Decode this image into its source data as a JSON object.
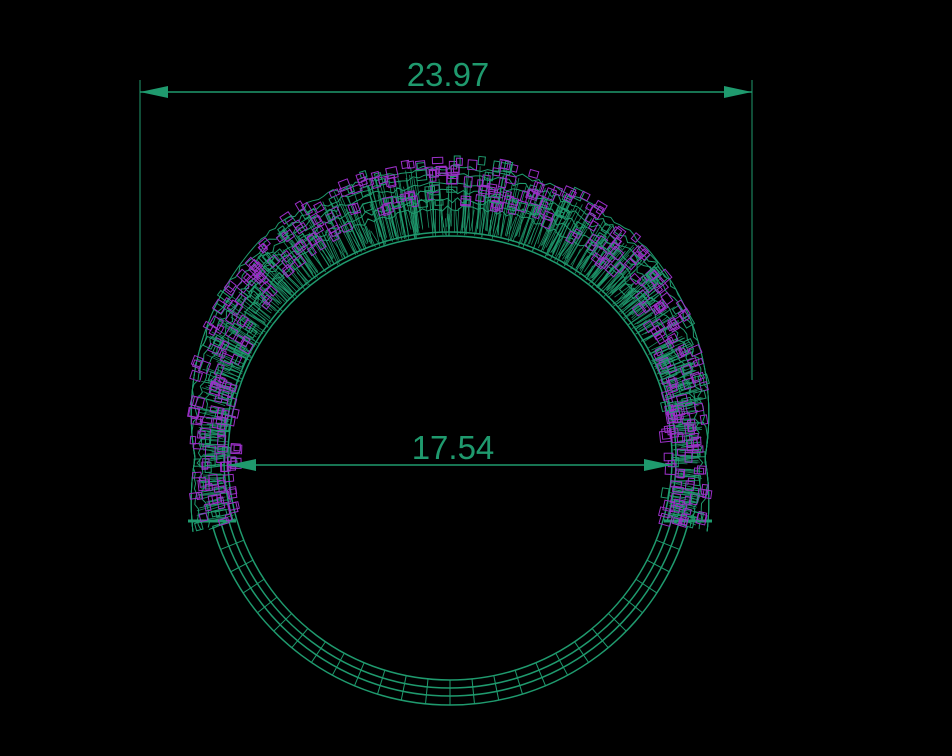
{
  "colors": {
    "background": "#000000",
    "wireframe": "#1f9a6e",
    "stones": "#9b30c8"
  },
  "dimensions": {
    "outer_width": "23.97",
    "inner_diameter": "17.54"
  }
}
